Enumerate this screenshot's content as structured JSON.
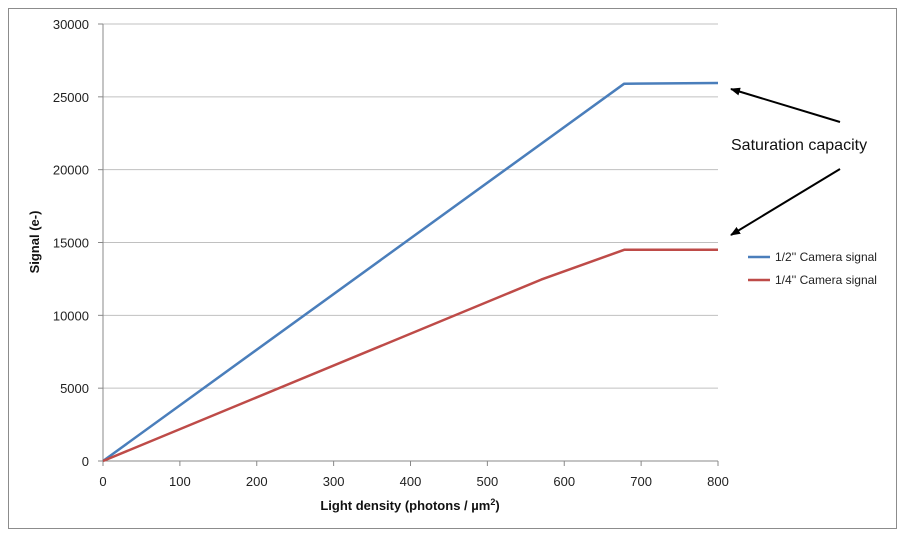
{
  "chart_data": {
    "type": "line",
    "xlabel": "Light density (photons / µm",
    "xlabel_sup": "2",
    "xlabel_suffix": ")",
    "ylabel": "Signal (e-)",
    "xlim": [
      0,
      800
    ],
    "ylim": [
      0,
      30000
    ],
    "x_ticks": [
      0,
      100,
      200,
      300,
      400,
      500,
      600,
      700,
      800
    ],
    "y_ticks": [
      0,
      5000,
      10000,
      15000,
      20000,
      25000,
      30000
    ],
    "grid": "horizontal",
    "legend_position": "right",
    "series": [
      {
        "name": "1/2'' Camera signal",
        "color": "#4a7ebb",
        "points": [
          [
            0,
            0
          ],
          [
            678,
            25900
          ],
          [
            800,
            25950
          ]
        ]
      },
      {
        "name": "1/4'' Camera signal",
        "color": "#be4b48",
        "points": [
          [
            0,
            0
          ],
          [
            570,
            12450
          ],
          [
            678,
            14500
          ],
          [
            800,
            14500
          ]
        ]
      }
    ],
    "annotations": [
      {
        "text": "Saturation capacity",
        "arrow_targets_data": [
          [
            800,
            25950
          ],
          [
            800,
            14500
          ]
        ]
      }
    ]
  },
  "colors": {
    "grid": "#c0c0c0",
    "axis": "#888888",
    "border": "#8c8c8c",
    "arrow": "#000000"
  }
}
